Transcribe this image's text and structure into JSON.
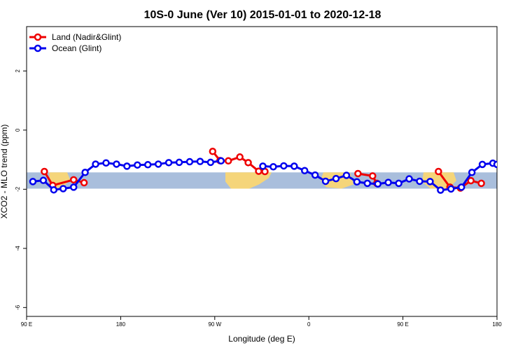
{
  "chart_data": {
    "type": "line",
    "title": "10S-0 June (Ver 10)   2015-01-01 to 2020-12-18",
    "xlabel": "Longitude (deg E)",
    "ylabel": "XCO2 - MLO trend (ppm)",
    "xlim": [
      90,
      540
    ],
    "ylim": [
      -6.3,
      3.5
    ],
    "x_ticks": [
      {
        "value": 90,
        "label": "90 E"
      },
      {
        "value": 180,
        "label": "180"
      },
      {
        "value": 270,
        "label": "90 W"
      },
      {
        "value": 360,
        "label": "0"
      },
      {
        "value": 450,
        "label": "90 E"
      },
      {
        "value": 540,
        "label": "180"
      }
    ],
    "y_ticks": [
      {
        "value": -6,
        "label": "-6"
      },
      {
        "value": -4,
        "label": "-4"
      },
      {
        "value": -2,
        "label": "-2"
      },
      {
        "value": 0,
        "label": "0"
      },
      {
        "value": 2,
        "label": "2"
      }
    ],
    "legend_position": "top-left",
    "map_band": {
      "y_top": -1.43,
      "y_bottom": -1.98,
      "ocean_color": "#a9bedc",
      "land_color": "#f5d57a"
    },
    "series": [
      {
        "name": "Land (Nadir&Glint)",
        "color": "#ee0000",
        "segments": [
          [
            [
              107,
              -1.4
            ],
            [
              115,
              -1.87
            ],
            [
              135,
              -1.68
            ],
            [
              145,
              -1.78
            ]
          ],
          [
            [
              268,
              -0.72
            ],
            [
              275,
              -1.03
            ],
            [
              283,
              -1.04
            ],
            [
              294,
              -0.91
            ],
            [
              302,
              -1.1
            ],
            [
              312,
              -1.39
            ],
            [
              318,
              -1.4
            ]
          ],
          [
            [
              407,
              -1.47
            ],
            [
              421,
              -1.55
            ],
            [
              425,
              -1.8
            ]
          ],
          [
            [
              484,
              -1.4
            ],
            [
              495,
              -1.93
            ],
            [
              505,
              -1.96
            ],
            [
              515,
              -1.71
            ],
            [
              525,
              -1.8
            ]
          ]
        ]
      },
      {
        "name": "Ocean (Glint)",
        "color": "#0000ee",
        "segments": [
          [
            [
              96,
              -1.74
            ],
            [
              106,
              -1.7
            ],
            [
              116,
              -2.02
            ],
            [
              125,
              -1.98
            ],
            [
              135,
              -1.93
            ],
            [
              146,
              -1.43
            ],
            [
              156,
              -1.15
            ],
            [
              166,
              -1.11
            ],
            [
              176,
              -1.15
            ],
            [
              186,
              -1.22
            ],
            [
              196,
              -1.18
            ],
            [
              206,
              -1.17
            ],
            [
              216,
              -1.15
            ],
            [
              226,
              -1.1
            ],
            [
              236,
              -1.09
            ],
            [
              246,
              -1.07
            ],
            [
              256,
              -1.06
            ],
            [
              266,
              -1.09
            ],
            [
              276,
              -1.04
            ]
          ],
          [
            [
              316,
              -1.22
            ],
            [
              326,
              -1.24
            ],
            [
              336,
              -1.21
            ],
            [
              346,
              -1.22
            ],
            [
              356,
              -1.37
            ],
            [
              366,
              -1.52
            ],
            [
              376,
              -1.73
            ],
            [
              386,
              -1.64
            ],
            [
              396,
              -1.53
            ],
            [
              406,
              -1.75
            ],
            [
              416,
              -1.8
            ],
            [
              426,
              -1.82
            ],
            [
              436,
              -1.77
            ],
            [
              446,
              -1.8
            ],
            [
              456,
              -1.65
            ],
            [
              466,
              -1.73
            ],
            [
              476,
              -1.74
            ],
            [
              486,
              -2.03
            ],
            [
              496,
              -1.99
            ],
            [
              506,
              -1.93
            ],
            [
              516,
              -1.43
            ],
            [
              526,
              -1.16
            ],
            [
              536,
              -1.12
            ],
            [
              540,
              -1.16
            ]
          ]
        ]
      }
    ]
  }
}
